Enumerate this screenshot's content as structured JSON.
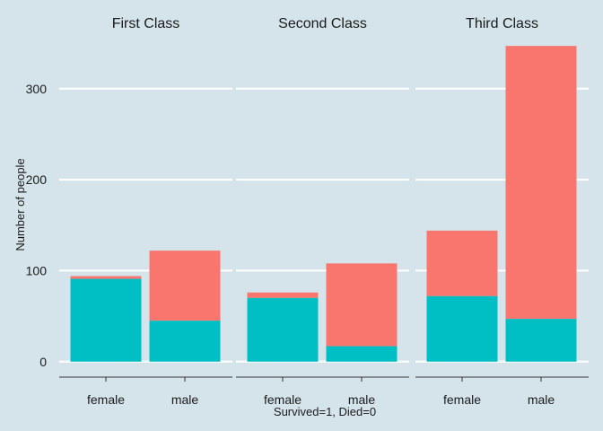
{
  "chart_data": {
    "type": "bar",
    "stacked": true,
    "xlabel": "Survived=1, Died=0",
    "ylabel": "Number of people",
    "ylim": [
      -17,
      356
    ],
    "yticks": [
      0,
      100,
      200,
      300
    ],
    "grid": true,
    "series_colors": {
      "survived": "#00bfc4",
      "died": "#f8766d"
    },
    "facets": [
      {
        "title": "First Class",
        "categories": [
          "female",
          "male"
        ],
        "survived": [
          91,
          45
        ],
        "died": [
          3,
          77
        ]
      },
      {
        "title": "Second Class",
        "categories": [
          "female",
          "male"
        ],
        "survived": [
          70,
          17
        ],
        "died": [
          6,
          91
        ]
      },
      {
        "title": "Third Class",
        "categories": [
          "female",
          "male"
        ],
        "survived": [
          72,
          47
        ],
        "died": [
          72,
          300
        ]
      }
    ]
  }
}
